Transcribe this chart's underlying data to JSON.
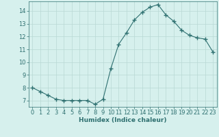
{
  "x": [
    0,
    1,
    2,
    3,
    4,
    5,
    6,
    7,
    8,
    9,
    10,
    11,
    12,
    13,
    14,
    15,
    16,
    17,
    18,
    19,
    20,
    21,
    22,
    23
  ],
  "y": [
    8.0,
    7.7,
    7.4,
    7.1,
    7.0,
    7.0,
    7.0,
    7.0,
    6.7,
    7.1,
    9.5,
    11.4,
    12.3,
    13.3,
    13.9,
    14.3,
    14.5,
    13.7,
    13.2,
    12.5,
    12.1,
    11.9,
    11.8,
    10.8
  ],
  "line_color": "#2e7070",
  "marker": "+",
  "marker_size": 4,
  "bg_color": "#d6f0ed",
  "grid_color": "#b8d8d4",
  "axis_color": "#2e7070",
  "xlabel": "Humidex (Indice chaleur)",
  "xlim": [
    -0.5,
    23.5
  ],
  "ylim": [
    6.5,
    14.75
  ],
  "yticks": [
    7,
    8,
    9,
    10,
    11,
    12,
    13,
    14
  ],
  "xticks": [
    0,
    1,
    2,
    3,
    4,
    5,
    6,
    7,
    8,
    9,
    10,
    11,
    12,
    13,
    14,
    15,
    16,
    17,
    18,
    19,
    20,
    21,
    22,
    23
  ],
  "label_fontsize": 6.5,
  "tick_fontsize": 6.0
}
